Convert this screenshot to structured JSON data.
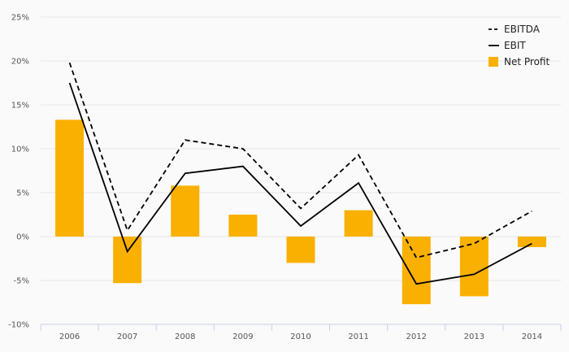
{
  "chart_data": {
    "type": "bar",
    "categories": [
      "2006",
      "2007",
      "2008",
      "2009",
      "2010",
      "2011",
      "2012",
      "2013",
      "2014"
    ],
    "series": [
      {
        "name": "EBITDA",
        "kind": "line",
        "style": "dashed",
        "color": "#000000",
        "values": [
          19.8,
          0.7,
          11.0,
          10.0,
          3.2,
          9.3,
          -2.4,
          -0.8,
          2.9
        ]
      },
      {
        "name": "EBIT",
        "kind": "line",
        "style": "solid",
        "color": "#000000",
        "values": [
          17.5,
          -1.7,
          7.2,
          8.0,
          1.2,
          6.1,
          -5.4,
          -4.3,
          -0.8
        ]
      },
      {
        "name": "Net Profit",
        "kind": "bar",
        "color": "#FAB000",
        "values": [
          13.3,
          -5.3,
          5.8,
          2.5,
          -3.0,
          3.0,
          -7.7,
          -6.8,
          -1.2
        ]
      }
    ],
    "y_ticks": [
      "-10%",
      "-5%",
      "0%",
      "5%",
      "10%",
      "15%",
      "20%",
      "25%"
    ],
    "ylim": [
      -10,
      25
    ],
    "grid": true,
    "legend_position": "top-right"
  }
}
